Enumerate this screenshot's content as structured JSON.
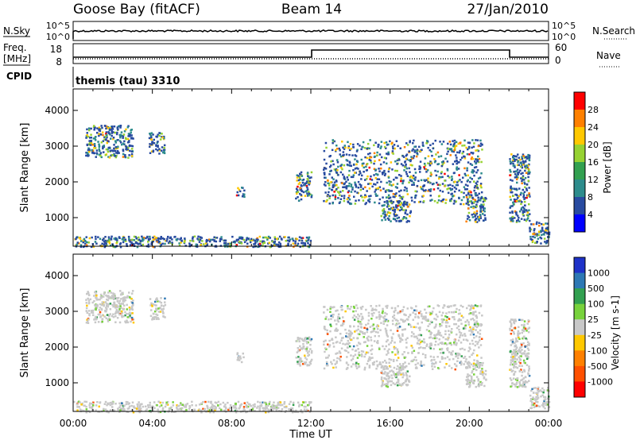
{
  "header": {
    "station": "Goose Bay (fitACF)",
    "beam": "Beam 14",
    "date": "27/Jan/2010"
  },
  "strips": {
    "nsky_label": "N.Sky",
    "nsky_ticks": [
      "10^5",
      "10^0"
    ],
    "nsearch_label": "N.Search",
    "nsearch_ticks": [
      "10^5",
      "10^0"
    ],
    "freq_label_1": "Freq.",
    "freq_label_2": "[MHz]",
    "freq_ticks": [
      "18",
      "8"
    ],
    "nave_label": "Nave",
    "nave_ticks": [
      "60",
      "0"
    ],
    "cpid_label": "CPID",
    "cpid_value": "themis (tau) 3310"
  },
  "chart_data": [
    {
      "type": "heatmap",
      "ylabel": "Slant Range [km]",
      "xlabel": "Time UT",
      "x_ticks": [
        "00:00",
        "04:00",
        "08:00",
        "12:00",
        "16:00",
        "20:00",
        "00:00"
      ],
      "y_ticks": [
        1000,
        2000,
        3000,
        4000
      ],
      "ylim": [
        200,
        4600
      ],
      "colorbar": {
        "label": "Power [dB]",
        "ticks": [
          "28",
          "24",
          "20",
          "16",
          "12",
          "8",
          "4"
        ],
        "colors": [
          "#ff0000",
          "#ff8000",
          "#ffc800",
          "#96d232",
          "#32a050",
          "#2d8c8c",
          "#284ba0",
          "#0000ff"
        ]
      },
      "regions": [
        {
          "t": [
            0.6,
            3.0
          ],
          "r": [
            2700,
            3600
          ]
        },
        {
          "t": [
            3.8,
            4.6
          ],
          "r": [
            2800,
            3400
          ]
        },
        {
          "t": [
            8.2,
            8.6
          ],
          "r": [
            1600,
            1900
          ]
        },
        {
          "t": [
            11.2,
            12.0
          ],
          "r": [
            1500,
            2300
          ]
        },
        {
          "t": [
            12.6,
            20.6
          ],
          "r": [
            1400,
            3200
          ]
        },
        {
          "t": [
            15.5,
            17.0
          ],
          "r": [
            900,
            1500
          ]
        },
        {
          "t": [
            19.8,
            20.8
          ],
          "r": [
            900,
            1600
          ]
        },
        {
          "t": [
            22.0,
            23.0
          ],
          "r": [
            900,
            2800
          ]
        },
        {
          "t": [
            23.0,
            24.0
          ],
          "r": [
            300,
            900
          ]
        },
        {
          "t": [
            0.0,
            12.0
          ],
          "r": [
            200,
            500
          ]
        }
      ]
    },
    {
      "type": "heatmap",
      "ylabel": "Slant Range [km]",
      "xlabel": "Time UT",
      "x_ticks": [
        "00:00",
        "04:00",
        "08:00",
        "12:00",
        "16:00",
        "20:00",
        "00:00"
      ],
      "y_ticks": [
        1000,
        2000,
        3000,
        4000
      ],
      "ylim": [
        200,
        4600
      ],
      "colorbar": {
        "label": "Velocity [m s-1]",
        "ticks": [
          "1000",
          "500",
          "100",
          "25",
          "-25",
          "-100",
          "-500",
          "-1000"
        ],
        "colors": [
          "#1e32c8",
          "#2d78b4",
          "#32a050",
          "#78d23c",
          "#c8c8c8",
          "#ffc800",
          "#ff8000",
          "#ff5000",
          "#ff0000"
        ]
      },
      "regions": [
        {
          "t": [
            0.6,
            3.0
          ],
          "r": [
            2700,
            3600
          ]
        },
        {
          "t": [
            3.8,
            4.6
          ],
          "r": [
            2800,
            3400
          ]
        },
        {
          "t": [
            8.2,
            8.6
          ],
          "r": [
            1600,
            1900
          ]
        },
        {
          "t": [
            11.2,
            12.0
          ],
          "r": [
            1500,
            2300
          ]
        },
        {
          "t": [
            12.6,
            20.6
          ],
          "r": [
            1400,
            3200
          ]
        },
        {
          "t": [
            15.5,
            17.0
          ],
          "r": [
            900,
            1500
          ]
        },
        {
          "t": [
            19.8,
            20.8
          ],
          "r": [
            900,
            1600
          ]
        },
        {
          "t": [
            22.0,
            23.0
          ],
          "r": [
            900,
            2800
          ]
        },
        {
          "t": [
            23.0,
            24.0
          ],
          "r": [
            300,
            900
          ]
        },
        {
          "t": [
            0.0,
            12.0
          ],
          "r": [
            200,
            500
          ]
        }
      ]
    }
  ]
}
